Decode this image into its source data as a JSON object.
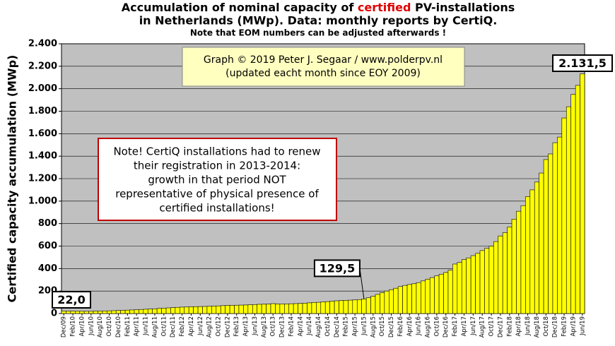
{
  "chart_data": {
    "type": "bar",
    "title_parts": [
      "Accumulation of nominal capacity of ",
      "certified",
      " PV-installations"
    ],
    "title_line2": "in Netherlands (MWp). Data: monthly reports by CertiQ.",
    "subtitle": "Note that EOM numbers can be adjusted afterwards !",
    "ylabel": "Certified capacity accumulation (MWp)",
    "credit": [
      "Graph © 2019 Peter J. Segaar / www.polderpv.nl",
      "(updated eacht month since EOY 2009)"
    ],
    "note": [
      "Note! CertiQ installations had to renew",
      "their registration in 2013-2014:",
      "growth in that period NOT",
      "representative of physical presence of",
      "certified installations!"
    ],
    "color": "#ffff00",
    "background": "#c0c0c0",
    "ylim": [
      0,
      2400
    ],
    "yticks": [
      0,
      200,
      400,
      600,
      800,
      {
        "value": 1000,
        "label": "1.000"
      },
      {
        "value": 1200,
        "label": "1.200"
      },
      {
        "value": 1400,
        "label": "1.400"
      },
      {
        "value": 1600,
        "label": "1.600"
      },
      {
        "value": 1800,
        "label": "1.800"
      },
      {
        "value": 2000,
        "label": "2.000"
      },
      {
        "value": 2200,
        "label": "2.200"
      },
      {
        "value": 2400,
        "label": "2.400"
      }
    ],
    "grid": true,
    "categories": [
      "Dec/09",
      null,
      "Feb/10",
      null,
      "Apr/10",
      null,
      "Jun/10",
      null,
      "Aug/10",
      null,
      "Oct/10",
      null,
      "Dec/10",
      null,
      "Feb/11",
      null,
      "Apr/11",
      null,
      "Jun/11",
      null,
      "Aug/11",
      null,
      "Oct/11",
      null,
      "Dec/11",
      null,
      "Feb/12",
      null,
      "Apr/12",
      null,
      "Jun/12",
      null,
      "Aug/12",
      null,
      "Oct/12",
      null,
      "Dec/12",
      null,
      "Feb/13",
      null,
      "Apr/13",
      null,
      "Jun/13",
      null,
      "Aug/13",
      null,
      "Oct/13",
      null,
      "Dec/13",
      null,
      "Feb/14",
      null,
      "Apr/14",
      null,
      "Jun/14",
      null,
      "Aug/14",
      null,
      "Oct/14",
      null,
      "Dec/14",
      null,
      "Feb/15",
      null,
      "Apr/15",
      null,
      "Jun/15",
      null,
      "Aug/15",
      null,
      "Oct/15",
      null,
      "Dec/15",
      null,
      "Feb/16",
      null,
      "Apr/16",
      null,
      "Jun/16",
      null,
      "Aug/16",
      null,
      "Oct/16",
      null,
      "Dec/16",
      null,
      "Feb/17",
      null,
      "Apr/17",
      null,
      "Jun/17",
      null,
      "Aug/17",
      null,
      "Oct/17",
      null,
      "Dec/17",
      null,
      "Feb/18",
      null,
      "Apr/18",
      null,
      "Jun/18",
      null,
      "Aug/18",
      null,
      "Oct/18",
      null,
      "Dec/18",
      null,
      "Feb/19",
      null,
      "Apr/19",
      null,
      "Jun/19"
    ],
    "values": [
      22,
      21,
      21,
      20,
      20,
      20,
      20,
      21,
      22,
      23,
      24,
      25,
      27,
      28,
      30,
      32,
      34,
      36,
      38,
      40,
      42,
      45,
      48,
      50,
      53,
      55,
      57,
      58,
      60,
      61,
      62,
      63,
      64,
      66,
      68,
      70,
      72,
      73,
      74,
      75,
      76,
      78,
      80,
      82,
      83,
      84,
      88,
      84,
      85,
      86,
      87,
      88,
      90,
      92,
      95,
      98,
      100,
      103,
      106,
      110,
      113,
      115,
      117,
      119,
      121,
      124,
      129.5,
      140,
      155,
      170,
      185,
      200,
      212,
      225,
      240,
      250,
      258,
      265,
      275,
      290,
      305,
      320,
      335,
      350,
      365,
      385,
      440,
      455,
      480,
      495,
      515,
      535,
      560,
      580,
      600,
      640,
      690,
      720,
      770,
      840,
      910,
      960,
      1040,
      1100,
      1170,
      1250,
      1370,
      1420,
      1520,
      1570,
      1740,
      1840,
      1950,
      2030,
      2131.5
    ],
    "value_labels": [
      "22,0",
      null,
      null,
      null,
      null,
      null,
      null,
      null,
      null,
      null,
      null,
      null,
      null,
      null,
      null,
      null,
      null,
      null,
      null,
      null,
      null,
      null,
      null,
      null,
      null,
      null,
      null,
      null,
      null,
      null,
      null,
      null,
      null,
      null,
      null,
      null,
      null,
      null,
      null,
      null,
      null,
      null,
      null,
      null,
      null,
      null,
      null,
      null,
      null,
      null,
      null,
      null,
      null,
      null,
      null,
      null,
      null,
      null,
      null,
      null,
      null,
      null,
      null,
      null,
      null,
      null,
      "129,5",
      null,
      null,
      null,
      null,
      null,
      null,
      null,
      null,
      null,
      null,
      null,
      null,
      null,
      null,
      null,
      null,
      null,
      null,
      null,
      null,
      null,
      null,
      null,
      null,
      null,
      null,
      null,
      null,
      null,
      null,
      null,
      null,
      null,
      null,
      null,
      null,
      null,
      null,
      null,
      null,
      null,
      null,
      null,
      null,
      null,
      null,
      null,
      "2.131,5"
    ]
  }
}
